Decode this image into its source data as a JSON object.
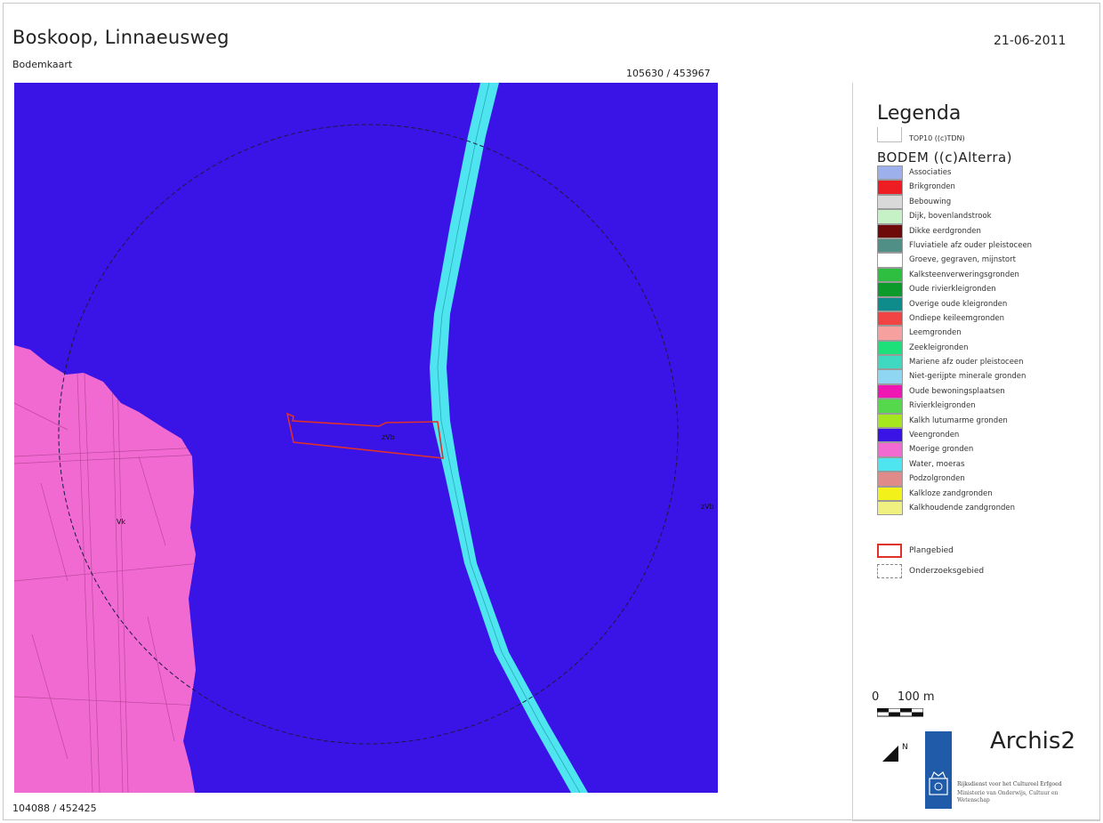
{
  "header": {
    "title": "Boskoop, Linnaeusweg",
    "subtitle": "Bodemkaart",
    "date": "21-06-2011",
    "coord_top_right": "105630 / 453967",
    "coord_bottom_left": "104088 / 452425"
  },
  "map": {
    "labels": {
      "plan_area_code": "zVb",
      "west_code": "Vk",
      "east_code": "zVb"
    },
    "colors": {
      "veengronden": "#3a14e6",
      "moerige": "#f06ad2",
      "water": "#4fe5f0",
      "plangebied": "#e0302a"
    }
  },
  "legend": {
    "title": "Legenda",
    "top10_label": "TOP10 ((c)TDN)",
    "bodem_title": "BODEM ((c)Alterra)",
    "items": [
      {
        "label": "Associaties",
        "color": "#9db0ec"
      },
      {
        "label": "Brikgronden",
        "color": "#ee1d23"
      },
      {
        "label": "Bebouwing",
        "color": "#d9d9d9"
      },
      {
        "label": "Dijk, bovenlandstrook",
        "color": "#c6f0c6"
      },
      {
        "label": "Dikke eerdgronden",
        "color": "#6e0a0a"
      },
      {
        "label": "Fluviatiele afz ouder pleistoceen",
        "color": "#4f8f86"
      },
      {
        "label": "Groeve, gegraven, mijnstort",
        "color": "#ffffff"
      },
      {
        "label": "Kalksteenverweringsgronden",
        "color": "#2fbf40"
      },
      {
        "label": "Oude rivierkleigronden",
        "color": "#0c9a2b"
      },
      {
        "label": "Overige oude kleigronden",
        "color": "#0e8c8c"
      },
      {
        "label": "Ondiepe keileemgronden",
        "color": "#f04444"
      },
      {
        "label": "Leemgronden",
        "color": "#f7a0a0"
      },
      {
        "label": "Zeekleigronden",
        "color": "#1ee07a"
      },
      {
        "label": "Mariene afz ouder pleistoceen",
        "color": "#3fd8c0"
      },
      {
        "label": "Niet-gerijpte minerale gronden",
        "color": "#8ed6f2"
      },
      {
        "label": "Oude bewoningsplaatsen",
        "color": "#f016b4"
      },
      {
        "label": "Rivierkleigronden",
        "color": "#56d84c"
      },
      {
        "label": "Kalkh lutumarme gronden",
        "color": "#a6e61e"
      },
      {
        "label": "Veengronden",
        "color": "#3a14e6"
      },
      {
        "label": "Moerige gronden",
        "color": "#f06ad2"
      },
      {
        "label": "Water, moeras",
        "color": "#4fe5f0"
      },
      {
        "label": "Podzolgronden",
        "color": "#e08a8a"
      },
      {
        "label": "Kalkloze zandgronden",
        "color": "#f2f21a"
      },
      {
        "label": "Kalkhoudende zandgronden",
        "color": "#f0f080"
      }
    ],
    "plangebied_label": "Plangebied",
    "onderzoeksgebied_label": "Onderzoeksgebied",
    "scale_label": "0     100 m",
    "north_label": "N",
    "brand": "Archis2",
    "ministry_line1": "Rijksdienst voor het Cultureel Erfgoed",
    "ministry_line2": "Ministerie van Onderwijs, Cultuur en Wetenschap"
  }
}
